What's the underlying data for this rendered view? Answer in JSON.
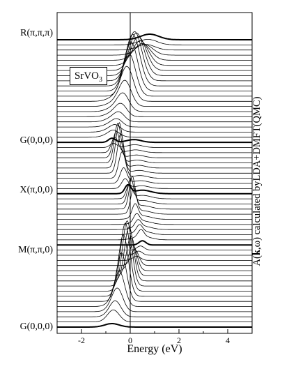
{
  "chart_data": {
    "type": "line",
    "title": "",
    "legend": {
      "material": "SrVO",
      "material_sub": "3",
      "placement": "top-left"
    },
    "xlabel": "Energy (eV)",
    "ylabel": {
      "prefix": "A(",
      "bold": "k",
      "comma": ",",
      "omega": "ω",
      "suffix": ") calculated byLDA+DMFT(QMC)"
    },
    "xlim": [
      -3,
      5
    ],
    "xticks": [
      -2,
      0,
      2,
      4
    ],
    "xtick_labels": [
      "-2",
      "0",
      "2",
      "4"
    ],
    "vertical_line_at": 0,
    "k_path_labels": [
      "R(π,π,π)",
      "G(0,0,0)",
      "X(π,0,0)",
      "M(π,π,0)",
      "G(0,0,0)"
    ],
    "k_path_segments": [
      20,
      10,
      10,
      16
    ],
    "spectra_description_series": [
      {
        "name": "",
        "values": []
      }
    ],
    "key_points": [
      {
        "k": "R",
        "peak_energy": 0.8
      },
      {
        "k": "G",
        "peak_energy": -0.75
      },
      {
        "k": "X",
        "peak_energy": -0.15
      },
      {
        "k": "X",
        "peak_energy2": 0.5
      },
      {
        "k": "M",
        "peak_energy": 0.5
      },
      {
        "k": "G",
        "peak_energy": -0.75
      }
    ],
    "grid": false
  }
}
